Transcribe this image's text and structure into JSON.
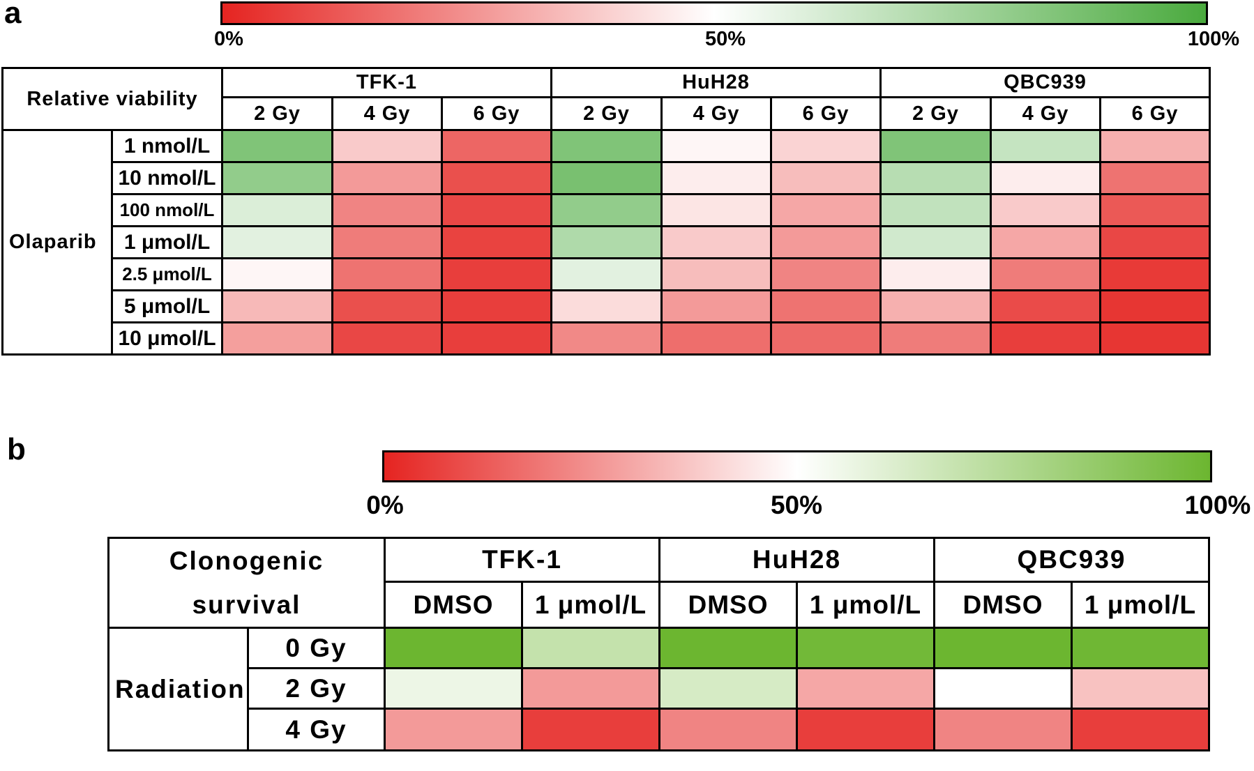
{
  "chart_data": [
    {
      "type": "heatmap",
      "panel": "a",
      "title": "",
      "corner_label": "Relative viability",
      "colorbar": {
        "ticks": [
          "0%",
          "50%",
          "100%"
        ],
        "min_color": "#e52421",
        "mid_color": "#ffffff",
        "max_color": "#4aaa3e"
      },
      "column_groups": [
        {
          "name": "TFK-1",
          "columns": [
            "2 Gy",
            "4 Gy",
            "6 Gy"
          ]
        },
        {
          "name": "HuH28",
          "columns": [
            "2 Gy",
            "4 Gy",
            "6 Gy"
          ]
        },
        {
          "name": "QBC939",
          "columns": [
            "2 Gy",
            "4 Gy",
            "6 Gy"
          ]
        }
      ],
      "row_group": "Olaparib",
      "rows": [
        "1 nmol/L",
        "10 nmol/L",
        "100 nmol/L",
        "1 μmol/L",
        "2.5 μmol/L",
        "5 μmol/L",
        "10 μmol/L"
      ],
      "values": [
        [
          85,
          38,
          15,
          85,
          48,
          40,
          85,
          66,
          32
        ],
        [
          80,
          27,
          10,
          87,
          46,
          35,
          70,
          46,
          18
        ],
        [
          60,
          22,
          8,
          80,
          44,
          30,
          67,
          38,
          12
        ],
        [
          58,
          20,
          7,
          72,
          38,
          27,
          63,
          30,
          8
        ],
        [
          48,
          18,
          6,
          58,
          35,
          22,
          46,
          20,
          5
        ],
        [
          34,
          10,
          6,
          42,
          27,
          18,
          32,
          9,
          4
        ],
        [
          28,
          8,
          6,
          23,
          17,
          16,
          20,
          6,
          4
        ]
      ],
      "value_range": [
        0,
        100
      ]
    },
    {
      "type": "heatmap",
      "panel": "b",
      "title": "",
      "corner_label": [
        "Clonogenic",
        "survival"
      ],
      "colorbar": {
        "ticks": [
          "0%",
          "50%",
          "100%"
        ],
        "min_color": "#e52421",
        "mid_color": "#ffffff",
        "max_color": "#6cb630"
      },
      "column_groups": [
        {
          "name": "TFK-1",
          "columns": [
            "DMSO",
            "1 μmol/L"
          ]
        },
        {
          "name": "HuH28",
          "columns": [
            "DMSO",
            "1 μmol/L"
          ]
        },
        {
          "name": "QBC939",
          "columns": [
            "DMSO",
            "1 μmol/L"
          ]
        }
      ],
      "row_group": "Radiation",
      "rows": [
        "0 Gy",
        "2 Gy",
        "4 Gy"
      ],
      "values": [
        [
          100,
          70,
          100,
          98,
          100,
          99
        ],
        [
          56,
          27,
          64,
          30,
          50,
          36
        ],
        [
          27,
          6,
          22,
          6,
          22,
          6
        ]
      ],
      "value_range": [
        0,
        100
      ]
    }
  ]
}
